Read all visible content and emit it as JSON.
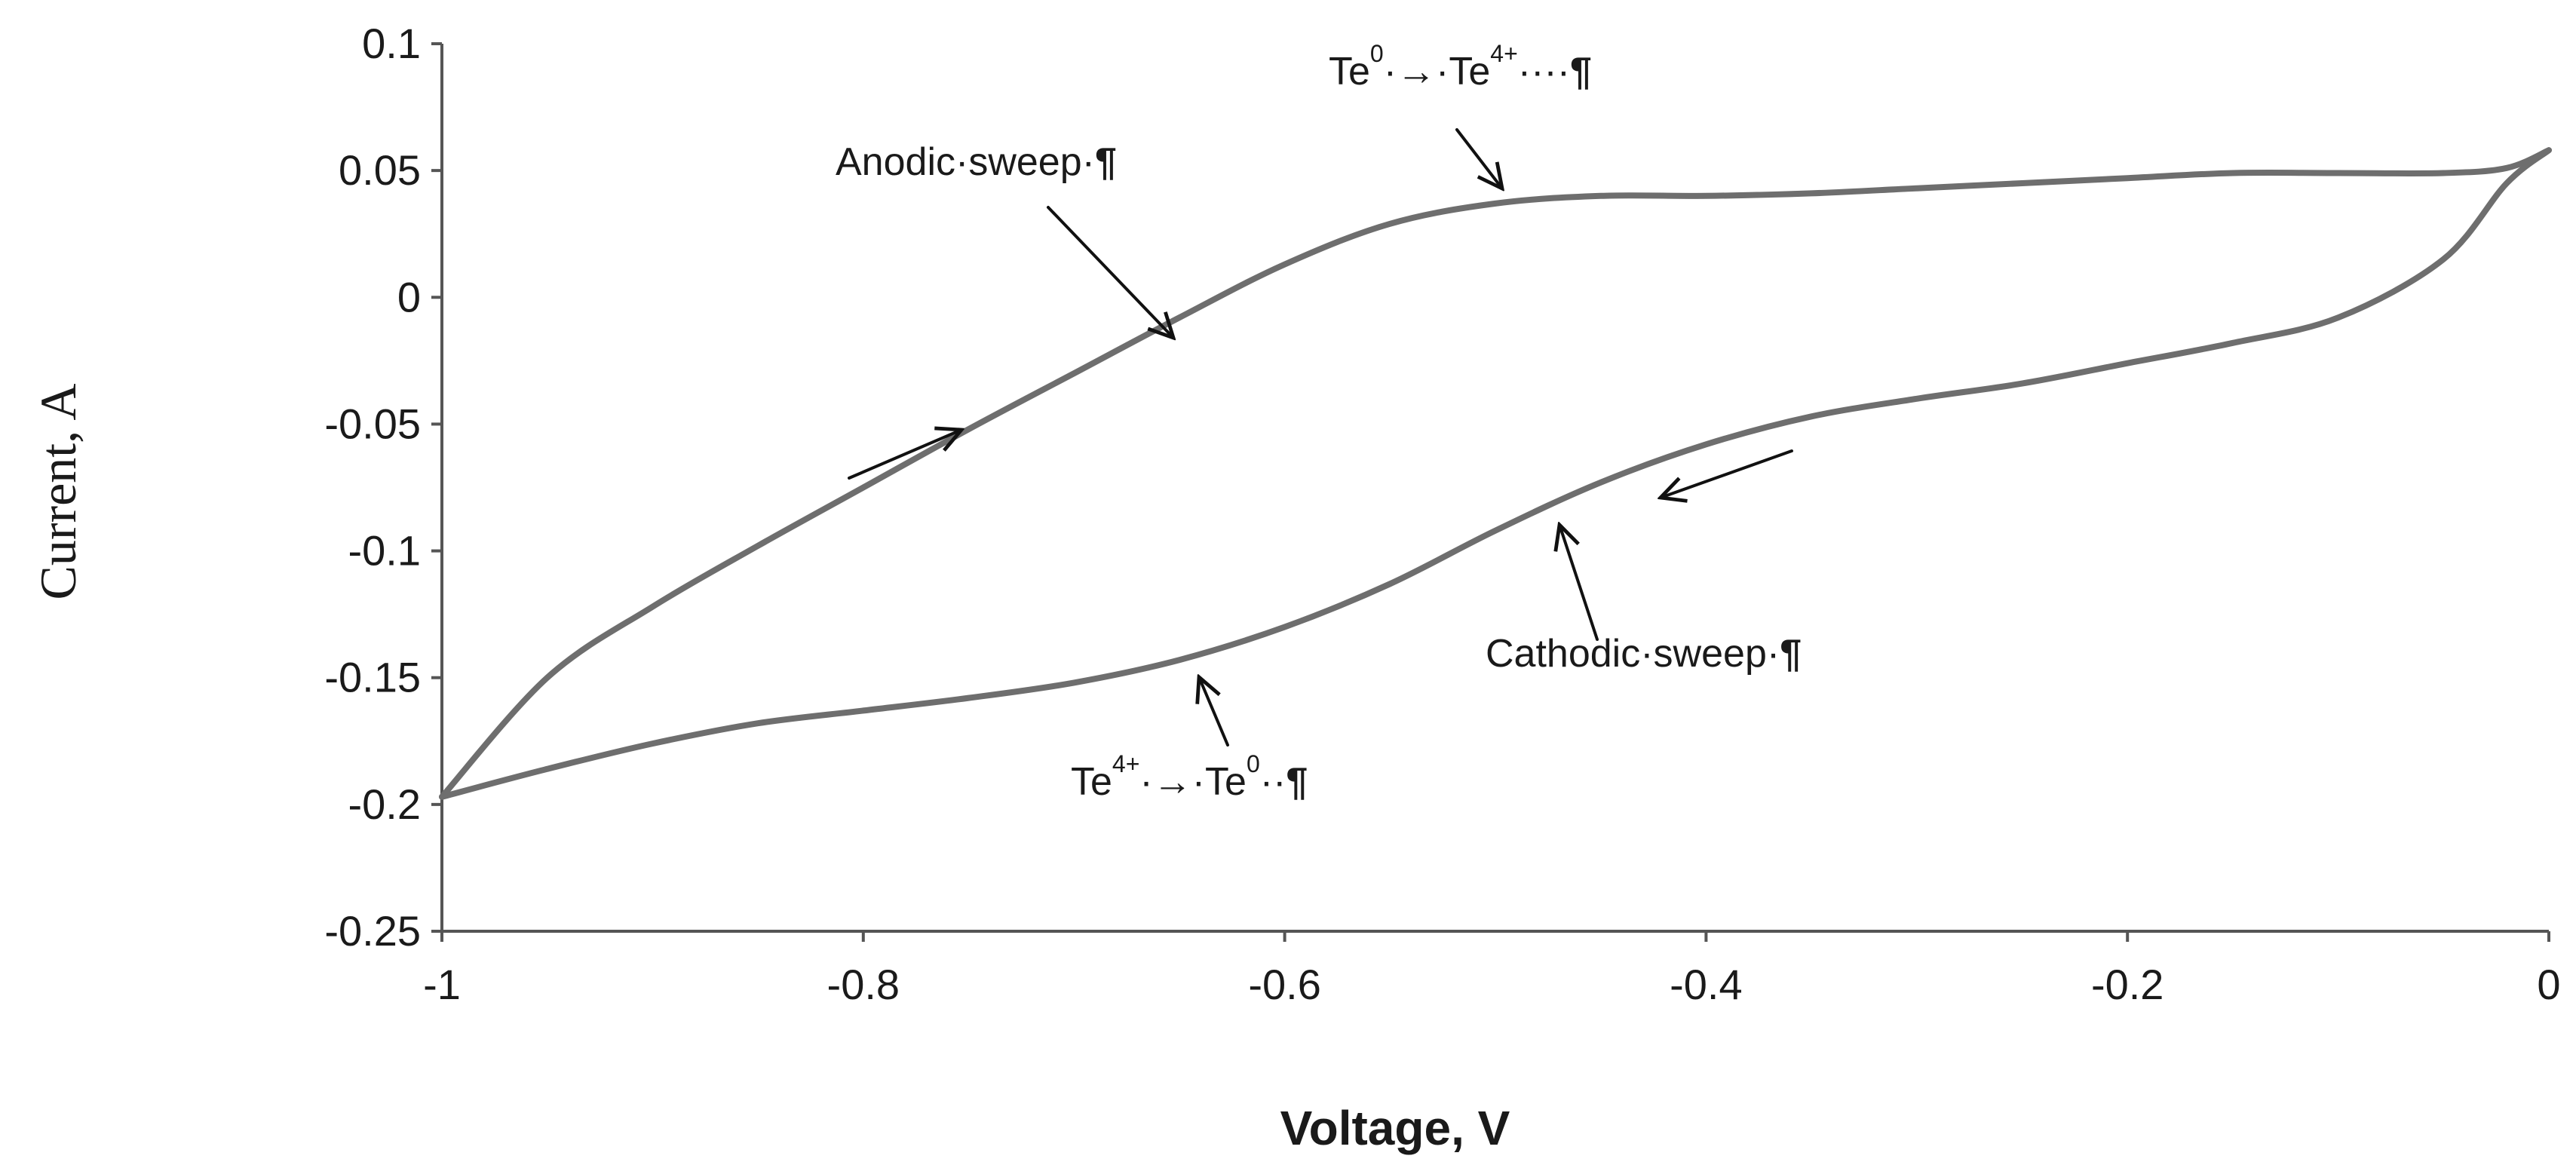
{
  "chart_data": {
    "type": "line",
    "title": "",
    "xlabel": "Voltage, V",
    "ylabel": "Current, A",
    "xlim": [
      -1,
      0
    ],
    "ylim": [
      -0.25,
      0.1
    ],
    "x_ticks": [
      "-1",
      "-0.8",
      "-0.6",
      "-0.4",
      "-0.2",
      "0"
    ],
    "y_ticks": [
      "0.1",
      "0.05",
      "0",
      "-0.05",
      "-0.1",
      "-0.15",
      "-0.2",
      "-0.25"
    ],
    "grid": false,
    "legend": "none",
    "line_color": "#6e6e6e",
    "series": [
      {
        "x": [
          -1.0,
          -0.95,
          -0.9,
          -0.85,
          -0.8,
          -0.75,
          -0.7,
          -0.65,
          -0.6,
          -0.55,
          -0.5,
          -0.45,
          -0.4,
          -0.35,
          -0.3,
          -0.25,
          -0.2,
          -0.15,
          -0.1,
          -0.05,
          -0.02,
          0.0
        ],
        "y": [
          -0.197,
          -0.15,
          -0.122,
          -0.098,
          -0.075,
          -0.052,
          -0.03,
          -0.008,
          0.013,
          0.029,
          0.037,
          0.04,
          0.04,
          0.041,
          0.043,
          0.045,
          0.047,
          0.049,
          0.049,
          0.049,
          0.051,
          0.058
        ]
      },
      {
        "x": [
          0.0,
          -0.02,
          -0.05,
          -0.1,
          -0.15,
          -0.2,
          -0.25,
          -0.3,
          -0.35,
          -0.4,
          -0.45,
          -0.5,
          -0.55,
          -0.6,
          -0.65,
          -0.7,
          -0.75,
          -0.8,
          -0.85,
          -0.9,
          -0.95,
          -1.0
        ],
        "y": [
          0.058,
          0.045,
          0.015,
          -0.008,
          -0.018,
          -0.026,
          -0.034,
          -0.04,
          -0.047,
          -0.058,
          -0.073,
          -0.092,
          -0.113,
          -0.13,
          -0.143,
          -0.152,
          -0.158,
          -0.163,
          -0.168,
          -0.176,
          -0.186,
          -0.197
        ]
      }
    ],
    "annotations": {
      "anodic": {
        "main": "Anodic·sweep·",
        "mark": "¶"
      },
      "oxidation": {
        "t1": "Te",
        "s1": "0",
        "arrow": "·→·Te",
        "s2": "4+",
        "tail": "····",
        "mark": "¶"
      },
      "cathodic": {
        "main": "Cathodic·sweep·",
        "mark": "¶"
      },
      "reduction": {
        "t1": "Te",
        "s1": "4+",
        "arrow": "·→·Te",
        "s2": "0",
        "tail": "··",
        "mark": "¶"
      }
    }
  }
}
